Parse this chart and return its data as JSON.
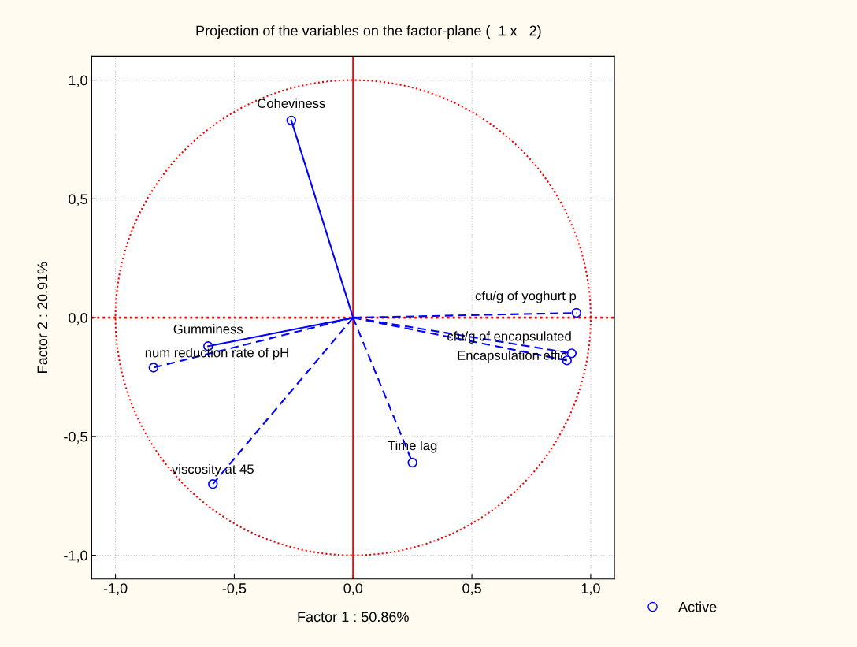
{
  "chart_data": {
    "type": "scatter",
    "title": "Projection of the variables on the factor-plane (  1 x   2)",
    "xlabel": "Factor 1 : 50.86%",
    "ylabel": "Factor 2 : 20.91%",
    "xlim": [
      -1.1,
      1.1
    ],
    "ylim": [
      -1.1,
      1.1
    ],
    "xticks": [
      {
        "value": -1.0,
        "label": "-1,0"
      },
      {
        "value": -0.5,
        "label": "-0,5"
      },
      {
        "value": 0.0,
        "label": "0,0"
      },
      {
        "value": 0.5,
        "label": "0,5"
      },
      {
        "value": 1.0,
        "label": "1,0"
      }
    ],
    "yticks": [
      {
        "value": -1.0,
        "label": "-1,0"
      },
      {
        "value": -0.5,
        "label": "-0,5"
      },
      {
        "value": 0.0,
        "label": "0,0"
      },
      {
        "value": 0.5,
        "label": "0,5"
      },
      {
        "value": 1.0,
        "label": "1,0"
      }
    ],
    "grid": true,
    "legend": "bottom right",
    "ref_lines": [
      {
        "axis": "x",
        "value": 0,
        "color": "#ff0000",
        "line_style": "solid"
      },
      {
        "axis": "y",
        "value": 0,
        "color": "#ff0000",
        "line_style": "dotted"
      }
    ],
    "series": [
      {
        "type": "line",
        "color": "#0000ff",
        "line_style": "solid",
        "x": [
          0,
          -0.26,
          null,
          0,
          -0.61
        ],
        "values": [
          0,
          0.83,
          null,
          0,
          -0.12
        ]
      },
      {
        "type": "line",
        "color": "#0000ff",
        "line_style": "dashed",
        "x": [
          0,
          -0.84,
          null,
          0,
          -0.59,
          null,
          0,
          0.25,
          null,
          0,
          0.94,
          null,
          0,
          0.92,
          null,
          0,
          0.9
        ],
        "values": [
          0,
          -0.21,
          null,
          0,
          -0.7,
          null,
          0,
          -0.61,
          null,
          0,
          0.02,
          null,
          0,
          -0.15,
          null,
          0,
          -0.18
        ]
      },
      {
        "type": "scatter",
        "name": "Active",
        "color": "#0000ff",
        "marker": "circle",
        "x": [
          -0.26,
          -0.61,
          -0.84,
          -0.59,
          0.25,
          0.94,
          0.92,
          0.9
        ],
        "values": [
          0.83,
          -0.12,
          -0.21,
          -0.7,
          -0.61,
          0.02,
          -0.15,
          -0.18
        ]
      }
    ],
    "annotations": [
      {
        "text": "Coheviness",
        "x": -0.26,
        "y": 0.83
      },
      {
        "text": "Gumminess",
        "x": -0.61,
        "y": -0.12
      },
      {
        "text": "num reduction rate of pH",
        "x": -0.84,
        "y": -0.21
      },
      {
        "text": "viscosity at 45",
        "x": -0.59,
        "y": -0.7
      },
      {
        "text": "Time lag",
        "x": 0.25,
        "y": -0.61
      },
      {
        "text": "cfu/g of yoghurt p",
        "x": 0.94,
        "y": 0.02
      },
      {
        "text": "cfu/g of encapsulated",
        "x": 0.92,
        "y": -0.15
      },
      {
        "text": "Encapsulation effic",
        "x": 0.9,
        "y": -0.18
      }
    ]
  }
}
